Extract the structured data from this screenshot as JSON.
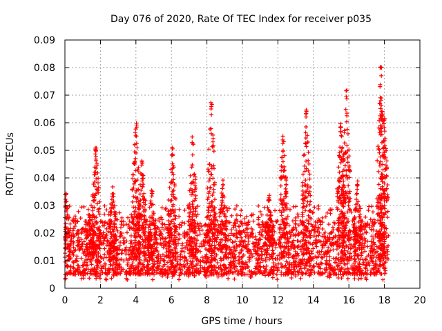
{
  "chart_data": {
    "type": "scatter",
    "title": "Day 076 of 2020, Rate Of TEC Index for receiver p035",
    "xlabel": "GPS time / hours",
    "ylabel": "ROTI / TECUs",
    "xlim": [
      0,
      20
    ],
    "ylim": [
      0,
      0.09
    ],
    "x_ticks": [
      "0",
      "2",
      "4",
      "6",
      "8",
      "10",
      "12",
      "14",
      "16",
      "18",
      "20"
    ],
    "y_ticks": [
      "0",
      "0.01",
      "0.02",
      "0.03",
      "0.04",
      "0.05",
      "0.06",
      "0.07",
      "0.08",
      "0.09"
    ],
    "grid": true,
    "marker": "+",
    "series": [
      {
        "name": "ROTI",
        "color": "#ff0000",
        "data_range_hours": [
          0,
          18.1
        ],
        "baseline_range": [
          0.005,
          0.02
        ],
        "bursts": [
          {
            "center_hour": 0.05,
            "peak": 0.035
          },
          {
            "center_hour": 1.4,
            "peak": 0.027
          },
          {
            "center_hour": 1.75,
            "peak": 0.052
          },
          {
            "center_hour": 2.7,
            "peak": 0.037
          },
          {
            "center_hour": 4.0,
            "peak": 0.06
          },
          {
            "center_hour": 4.35,
            "peak": 0.048
          },
          {
            "center_hour": 4.9,
            "peak": 0.037
          },
          {
            "center_hour": 6.05,
            "peak": 0.052
          },
          {
            "center_hour": 7.2,
            "peak": 0.055
          },
          {
            "center_hour": 8.25,
            "peak": 0.069
          },
          {
            "center_hour": 8.9,
            "peak": 0.04
          },
          {
            "center_hour": 11.5,
            "peak": 0.035
          },
          {
            "center_hour": 12.3,
            "peak": 0.056
          },
          {
            "center_hour": 13.6,
            "peak": 0.066
          },
          {
            "center_hour": 15.55,
            "peak": 0.06
          },
          {
            "center_hour": 15.85,
            "peak": 0.072
          },
          {
            "center_hour": 16.5,
            "peak": 0.04
          },
          {
            "center_hour": 17.8,
            "peak": 0.081
          },
          {
            "center_hour": 18.0,
            "peak": 0.062
          }
        ]
      }
    ]
  }
}
